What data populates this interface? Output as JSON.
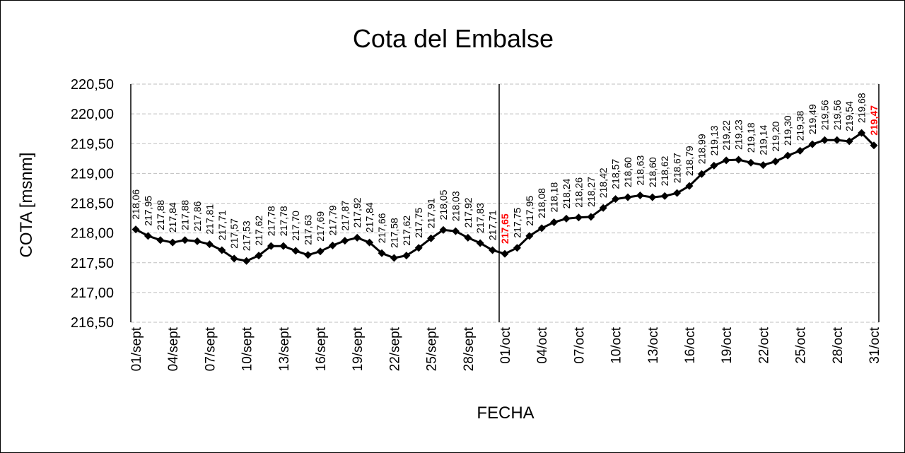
{
  "chart_data": {
    "type": "line",
    "title": "Cota del Embalse",
    "xlabel": "FECHA",
    "ylabel": "COTA [msnm]",
    "ylim": [
      216.5,
      220.5
    ],
    "ytick_step": 0.5,
    "grid": true,
    "legend": "none",
    "x": [
      "01/sept",
      "02/sept",
      "03/sept",
      "04/sept",
      "05/sept",
      "06/sept",
      "07/sept",
      "08/sept",
      "09/sept",
      "10/sept",
      "11/sept",
      "12/sept",
      "13/sept",
      "14/sept",
      "15/sept",
      "16/sept",
      "17/sept",
      "18/sept",
      "19/sept",
      "20/sept",
      "21/sept",
      "22/sept",
      "23/sept",
      "24/sept",
      "25/sept",
      "26/sept",
      "27/sept",
      "28/sept",
      "29/sept",
      "30/sept",
      "01/oct",
      "02/oct",
      "03/oct",
      "04/oct",
      "05/oct",
      "06/oct",
      "07/oct",
      "08/oct",
      "09/oct",
      "10/oct",
      "11/oct",
      "12/oct",
      "13/oct",
      "14/oct",
      "15/oct",
      "16/oct",
      "17/oct",
      "18/oct",
      "19/oct",
      "20/oct",
      "21/oct",
      "22/oct",
      "23/oct",
      "24/oct",
      "25/oct",
      "26/oct",
      "27/oct",
      "28/oct",
      "29/oct",
      "30/oct",
      "31/oct"
    ],
    "x_tick_labels": [
      "01/sept",
      "04/sept",
      "07/sept",
      "10/sept",
      "13/sept",
      "16/sept",
      "19/sept",
      "22/sept",
      "25/sept",
      "28/sept",
      "01/oct",
      "04/oct",
      "07/oct",
      "10/oct",
      "13/oct",
      "16/oct",
      "19/oct",
      "22/oct",
      "25/oct",
      "28/oct",
      "31/oct"
    ],
    "values": [
      218.06,
      217.95,
      217.88,
      217.84,
      217.88,
      217.86,
      217.81,
      217.71,
      217.57,
      217.53,
      217.62,
      217.78,
      217.78,
      217.7,
      217.63,
      217.69,
      217.79,
      217.87,
      217.92,
      217.84,
      217.66,
      217.58,
      217.62,
      217.75,
      217.91,
      218.05,
      218.03,
      217.92,
      217.83,
      217.71,
      217.65,
      217.75,
      217.95,
      218.08,
      218.18,
      218.24,
      218.26,
      218.27,
      218.42,
      218.57,
      218.6,
      218.63,
      218.6,
      218.62,
      218.67,
      218.79,
      218.99,
      219.13,
      219.22,
      219.23,
      219.18,
      219.14,
      219.2,
      219.3,
      219.38,
      219.49,
      219.56,
      219.56,
      219.54,
      219.68,
      219.47
    ],
    "data_labels": [
      "218,06",
      "217,95",
      "217,88",
      "217,84",
      "217,88",
      "217,86",
      "217,81",
      "217,71",
      "217,57",
      "217,53",
      "217,62",
      "217,78",
      "217,78",
      "217,70",
      "217,63",
      "217,69",
      "217,79",
      "217,87",
      "217,92",
      "217,84",
      "217,66",
      "217,58",
      "217,62",
      "217,75",
      "217,91",
      "218,05",
      "218,03",
      "217,92",
      "217,83",
      "217,71",
      "217,65",
      "217,75",
      "217,95",
      "218,08",
      "218,18",
      "218,24",
      "218,26",
      "218,27",
      "218,42",
      "218,57",
      "218,60",
      "218,63",
      "218,60",
      "218,62",
      "218,67",
      "218,79",
      "218,99",
      "219,13",
      "219,22",
      "219,23",
      "219,18",
      "219,14",
      "219,20",
      "219,30",
      "219,38",
      "219,49",
      "219,56",
      "219,56",
      "219,54",
      "219,68",
      "219,47"
    ],
    "y_tick_labels": [
      "216,50",
      "217,00",
      "217,50",
      "218,00",
      "218,50",
      "219,00",
      "219,50",
      "220,00",
      "220,50"
    ],
    "highlighted_labels": [
      "01/oct",
      "31/oct"
    ],
    "highlight_color": "#ff0000",
    "series_color": "#000000",
    "vertical_lines_at": [
      "01/sept",
      "01/oct",
      "31/oct"
    ]
  }
}
